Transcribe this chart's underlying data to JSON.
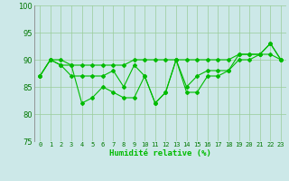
{
  "x": [
    0,
    1,
    2,
    3,
    4,
    5,
    6,
    7,
    8,
    9,
    10,
    11,
    12,
    13,
    14,
    15,
    16,
    17,
    18,
    19,
    20,
    21,
    22,
    23
  ],
  "line1": [
    87,
    90,
    90,
    89,
    89,
    89,
    89,
    89,
    89,
    90,
    90,
    90,
    90,
    90,
    90,
    90,
    90,
    90,
    90,
    91,
    91,
    91,
    91,
    90
  ],
  "line2": [
    87,
    90,
    89,
    87,
    87,
    87,
    87,
    88,
    85,
    89,
    87,
    82,
    84,
    90,
    85,
    87,
    88,
    88,
    88,
    91,
    91,
    91,
    93,
    90
  ],
  "line3": [
    87,
    90,
    89,
    89,
    82,
    83,
    85,
    84,
    83,
    83,
    87,
    82,
    84,
    90,
    84,
    84,
    87,
    87,
    88,
    90,
    90,
    91,
    93,
    90
  ],
  "ylim": [
    75,
    100
  ],
  "yticks": [
    75,
    80,
    85,
    90,
    95,
    100
  ],
  "xlabel": "Humidité relative (%)",
  "line_color": "#00bb00",
  "bg_color": "#cce8e8",
  "grid_color": "#99cc99",
  "marker": "D",
  "markersize": 2.0,
  "linewidth": 0.8
}
